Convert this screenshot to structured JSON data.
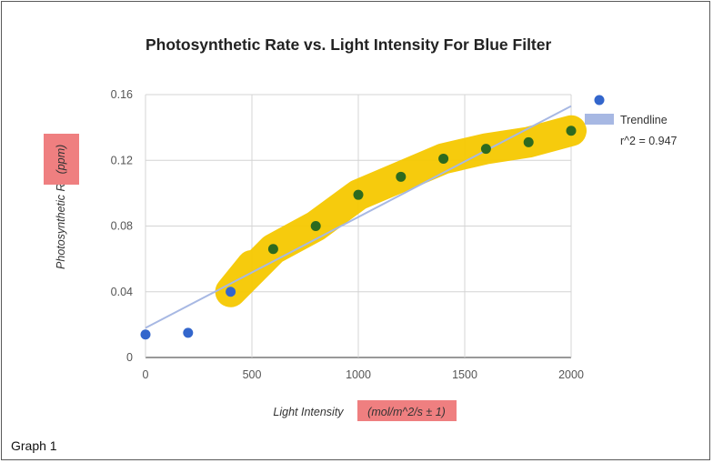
{
  "caption": "Graph 1",
  "chart_data": {
    "type": "scatter",
    "title": "Photosynthetic Rate vs. Light Intensity For Blue Filter",
    "xlabel_main": "Light Intensity ",
    "xlabel_unit": "(mol/m^2/s ± 1)",
    "ylabel_main": "Photosynthetic Rate ",
    "ylabel_unit": "(ppm)",
    "xlim": [
      0,
      2000
    ],
    "ylim": [
      0,
      0.16
    ],
    "x_ticks": [
      "0",
      "500",
      "1000",
      "1500",
      "2000"
    ],
    "y_ticks": [
      "0",
      "0.04",
      "0.08",
      "0.12",
      "0.16"
    ],
    "grid": true,
    "legend_position": "right",
    "series": [
      {
        "x": [
          0,
          200,
          400,
          600,
          800,
          1000,
          1200,
          1400,
          1600,
          1800,
          2000
        ],
        "y": [
          0.014,
          0.015,
          0.04,
          0.066,
          0.08,
          0.099,
          0.11,
          0.121,
          0.127,
          0.131,
          0.138
        ],
        "color": "#3366cc"
      }
    ],
    "trendline": {
      "label": "Trendline",
      "r2_label": "r^2 = 0.947",
      "x": [
        0,
        2000
      ],
      "y": [
        0.018,
        0.153
      ],
      "color": "#a7b8e3"
    },
    "highlight": {
      "x_range": [
        500,
        2000
      ],
      "color": "#f5c800",
      "note_color": "#ef7f80"
    }
  }
}
